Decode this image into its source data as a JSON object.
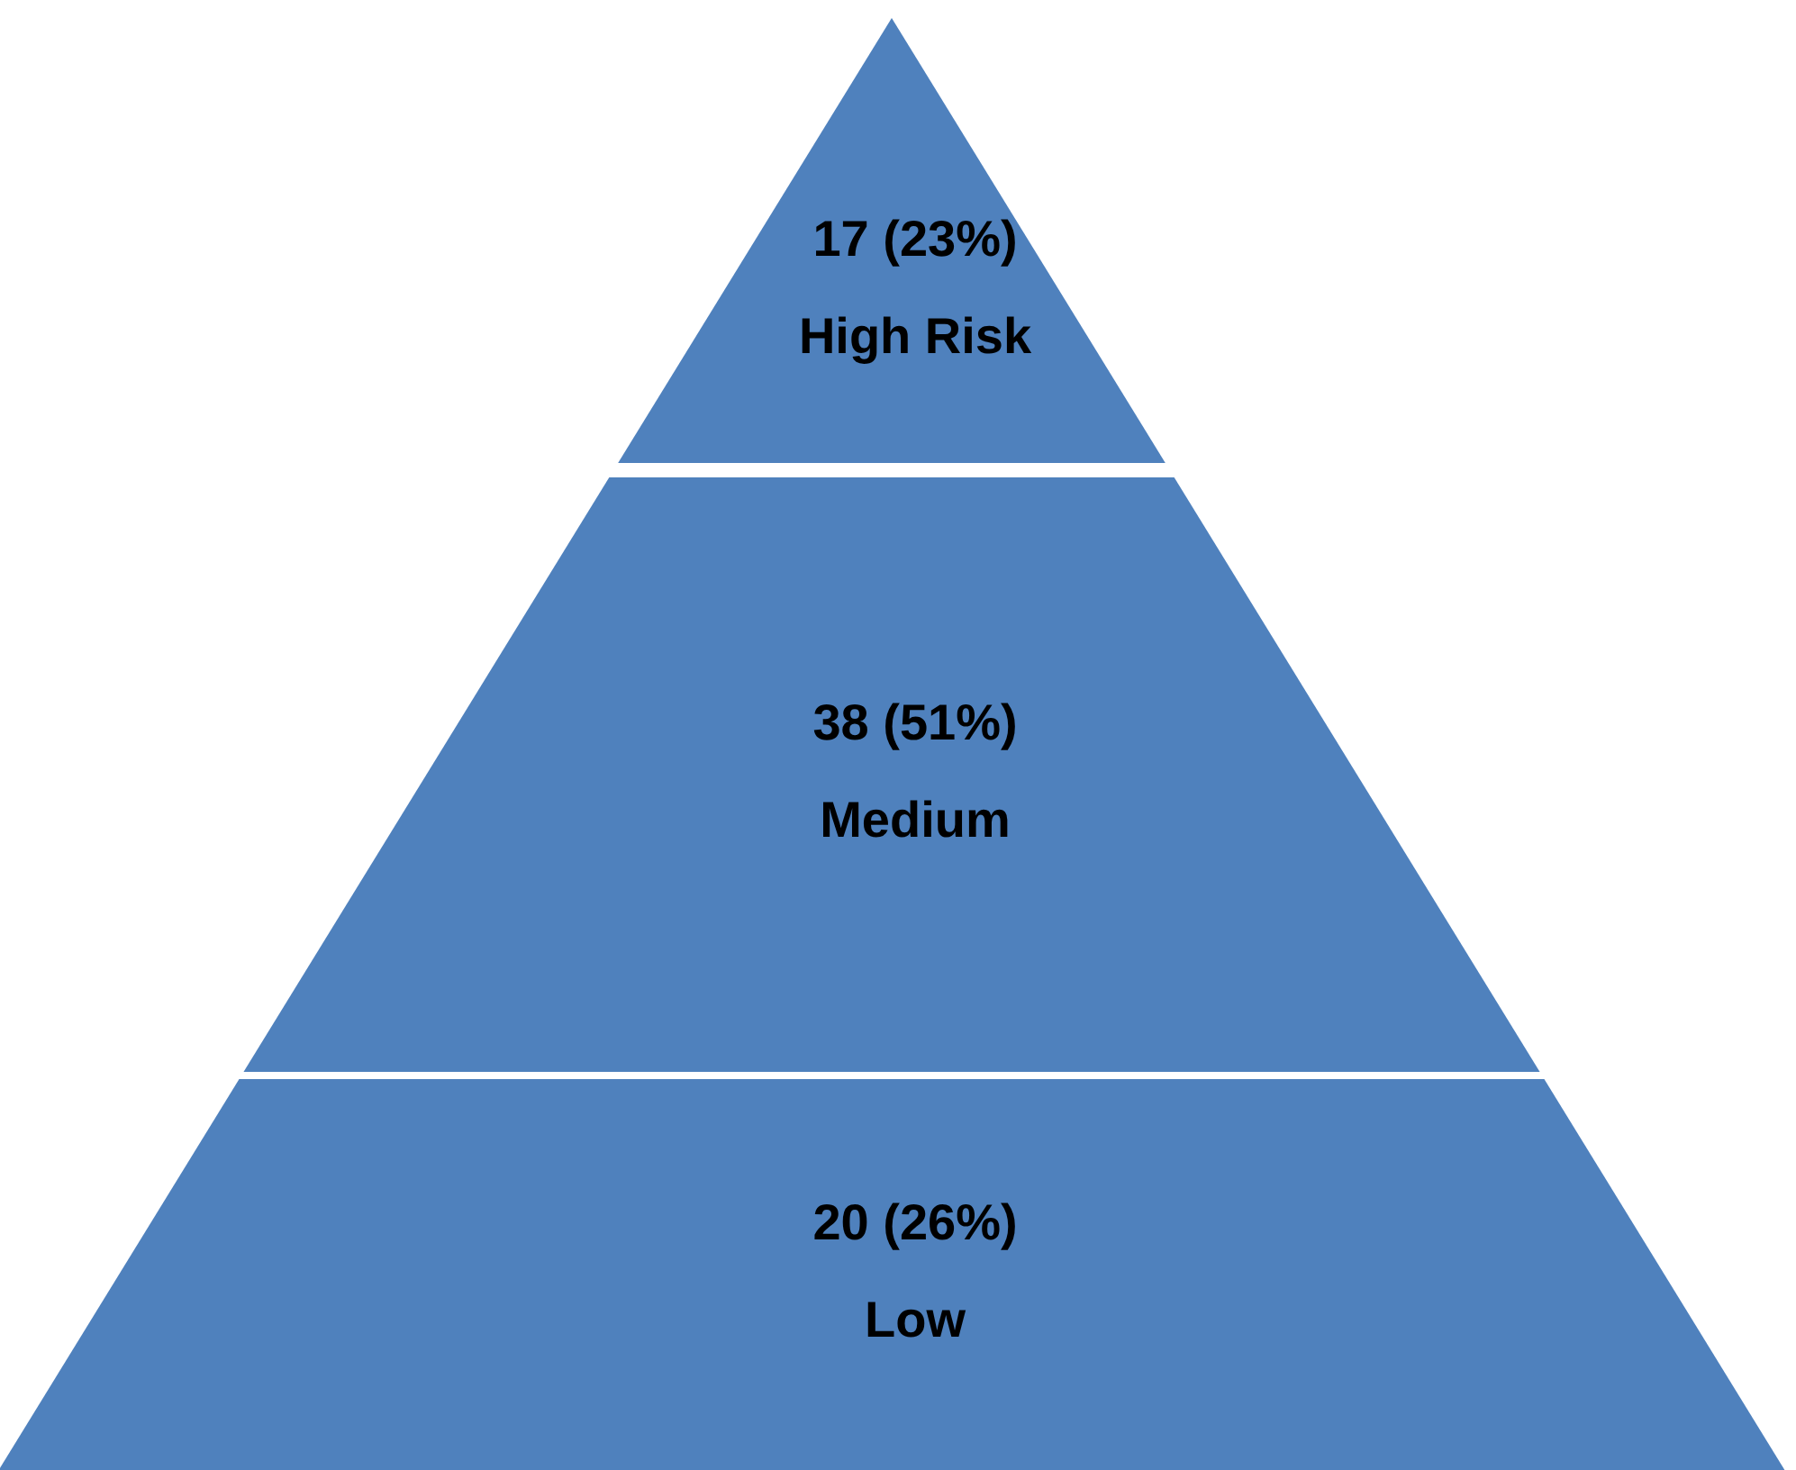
{
  "chart_data": {
    "type": "other",
    "categories": [
      "High Risk",
      "Medium",
      "Low"
    ],
    "values": [
      17,
      38,
      20
    ],
    "annotations": [
      "(23%)",
      "(51%)",
      "(26%)"
    ],
    "data_labels": true,
    "color": "#4f81bd"
  }
}
